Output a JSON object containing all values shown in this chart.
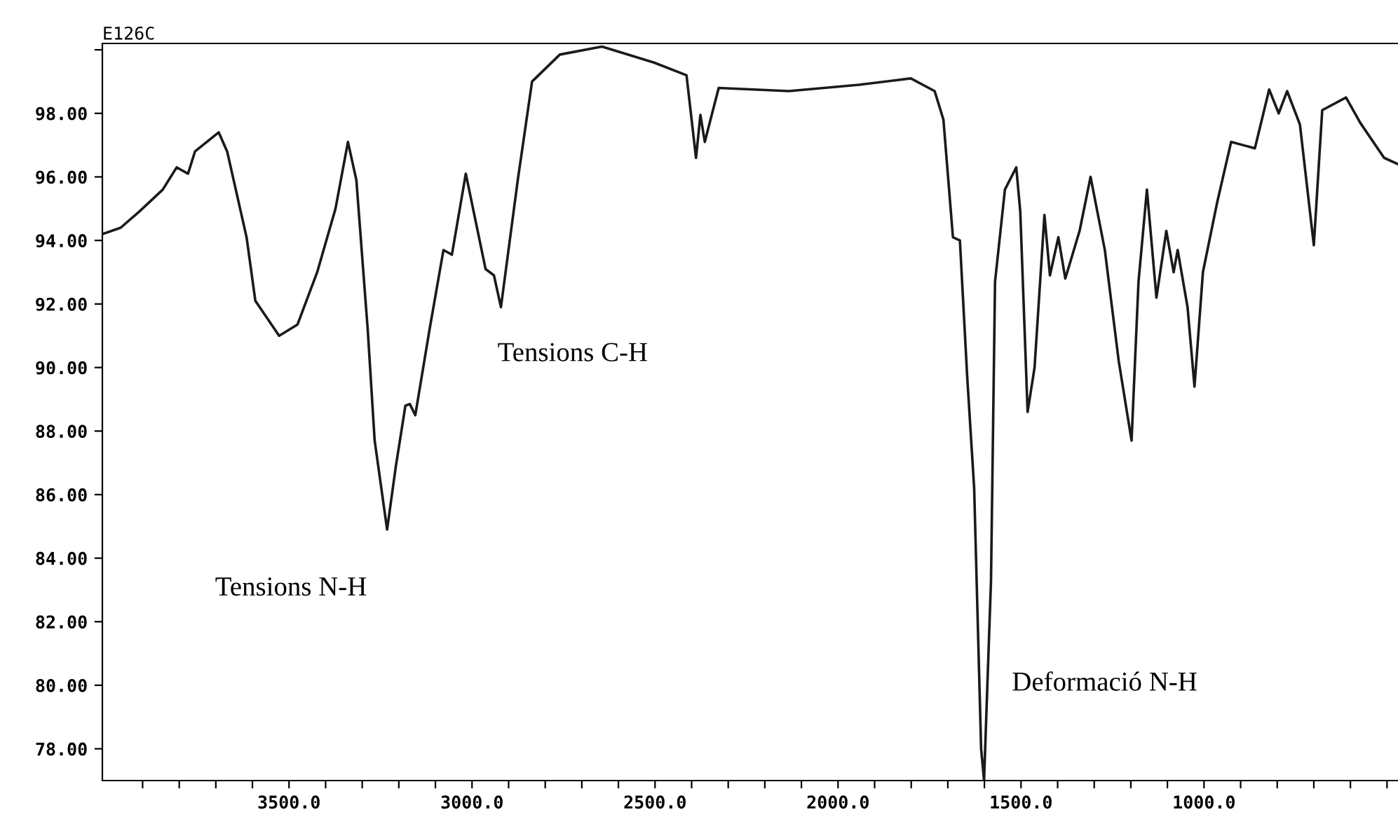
{
  "chart_data": {
    "type": "line",
    "title": "E126C",
    "x": [
      4010,
      3960,
      3910,
      3845,
      3807,
      3776,
      3757,
      3692,
      3669,
      3616,
      3592,
      3527,
      3477,
      3423,
      3373,
      3339,
      3316,
      3285,
      3266,
      3232,
      3208,
      3182,
      3170,
      3155,
      3116,
      3078,
      3055,
      3017,
      2963,
      2940,
      2921,
      2875,
      2836,
      2760,
      2645,
      2503,
      2414,
      2388,
      2376,
      2364,
      2326,
      2134,
      1943,
      1801,
      1736,
      1712,
      1686,
      1667,
      1647,
      1628,
      1609,
      1601,
      1582,
      1571,
      1544,
      1513,
      1502,
      1482,
      1463,
      1436,
      1421,
      1398,
      1379,
      1340,
      1310,
      1271,
      1233,
      1198,
      1179,
      1156,
      1130,
      1103,
      1083,
      1072,
      1045,
      1026,
      1003,
      964,
      926,
      861,
      822,
      796,
      773,
      738,
      700,
      677,
      612,
      573,
      508,
      470
    ],
    "series": [
      {
        "color": "#1a1a1a",
        "values": [
          94.2,
          94.4,
          94.9,
          95.6,
          96.3,
          96.1,
          96.8,
          97.4,
          96.8,
          94.1,
          92.1,
          91.0,
          91.35,
          93.0,
          95.0,
          97.1,
          95.9,
          91.2,
          87.7,
          84.9,
          86.9,
          88.8,
          88.85,
          88.5,
          91.2,
          93.7,
          93.55,
          96.1,
          93.1,
          92.9,
          91.9,
          95.9,
          99.0,
          99.85,
          100.1,
          99.6,
          99.2,
          96.6,
          97.95,
          97.1,
          98.8,
          98.7,
          98.9,
          99.1,
          98.7,
          97.8,
          94.1,
          94.0,
          89.7,
          86.2,
          78.0,
          77.0,
          83.3,
          92.7,
          95.6,
          96.3,
          94.9,
          88.6,
          90.0,
          94.8,
          92.9,
          94.1,
          92.8,
          94.3,
          96.0,
          93.7,
          90.2,
          87.7,
          92.7,
          95.6,
          92.2,
          94.3,
          93.0,
          93.7,
          91.9,
          89.4,
          93.0,
          95.2,
          97.1,
          96.9,
          98.75,
          98.0,
          98.7,
          97.65,
          93.85,
          98.1,
          98.5,
          97.7,
          96.6,
          96.4
        ]
      }
    ],
    "xlim": [
      4010,
      470
    ],
    "ylim": [
      77,
      100.2
    ],
    "xticks": [
      {
        "value": 3900,
        "label": null
      },
      {
        "value": 3800,
        "label": null
      },
      {
        "value": 3700,
        "label": null
      },
      {
        "value": 3600,
        "label": null
      },
      {
        "value": 3500,
        "label": "3500.0"
      },
      {
        "value": 3400,
        "label": null
      },
      {
        "value": 3300,
        "label": null
      },
      {
        "value": 3200,
        "label": null
      },
      {
        "value": 3100,
        "label": null
      },
      {
        "value": 3000,
        "label": "3000.0"
      },
      {
        "value": 2900,
        "label": null
      },
      {
        "value": 2800,
        "label": null
      },
      {
        "value": 2700,
        "label": null
      },
      {
        "value": 2600,
        "label": null
      },
      {
        "value": 2500,
        "label": "2500.0"
      },
      {
        "value": 2400,
        "label": null
      },
      {
        "value": 2300,
        "label": null
      },
      {
        "value": 2200,
        "label": null
      },
      {
        "value": 2100,
        "label": null
      },
      {
        "value": 2000,
        "label": "2000.0"
      },
      {
        "value": 1900,
        "label": null
      },
      {
        "value": 1800,
        "label": null
      },
      {
        "value": 1700,
        "label": null
      },
      {
        "value": 1600,
        "label": null
      },
      {
        "value": 1500,
        "label": "1500.0"
      },
      {
        "value": 1400,
        "label": null
      },
      {
        "value": 1300,
        "label": null
      },
      {
        "value": 1200,
        "label": null
      },
      {
        "value": 1100,
        "label": null
      },
      {
        "value": 1000,
        "label": "1000.0"
      },
      {
        "value": 900,
        "label": null
      },
      {
        "value": 800,
        "label": null
      },
      {
        "value": 700,
        "label": null
      },
      {
        "value": 600,
        "label": null
      },
      {
        "value": 500,
        "label": null
      }
    ],
    "yticks": [
      {
        "value": 78,
        "label": "78.00"
      },
      {
        "value": 80,
        "label": "80.00"
      },
      {
        "value": 82,
        "label": "82.00"
      },
      {
        "value": 84,
        "label": "84.00"
      },
      {
        "value": 86,
        "label": "86.00"
      },
      {
        "value": 88,
        "label": "88.00"
      },
      {
        "value": 90,
        "label": "90.00"
      },
      {
        "value": 92,
        "label": "92.00"
      },
      {
        "value": 94,
        "label": "94.00"
      },
      {
        "value": 96,
        "label": "96.00"
      },
      {
        "value": 98,
        "label": "98.00"
      },
      {
        "value": 100,
        "label": null
      }
    ],
    "annotations": [
      "Tensions N-H",
      "Tensions C-H",
      "Deformació N-H"
    ]
  }
}
